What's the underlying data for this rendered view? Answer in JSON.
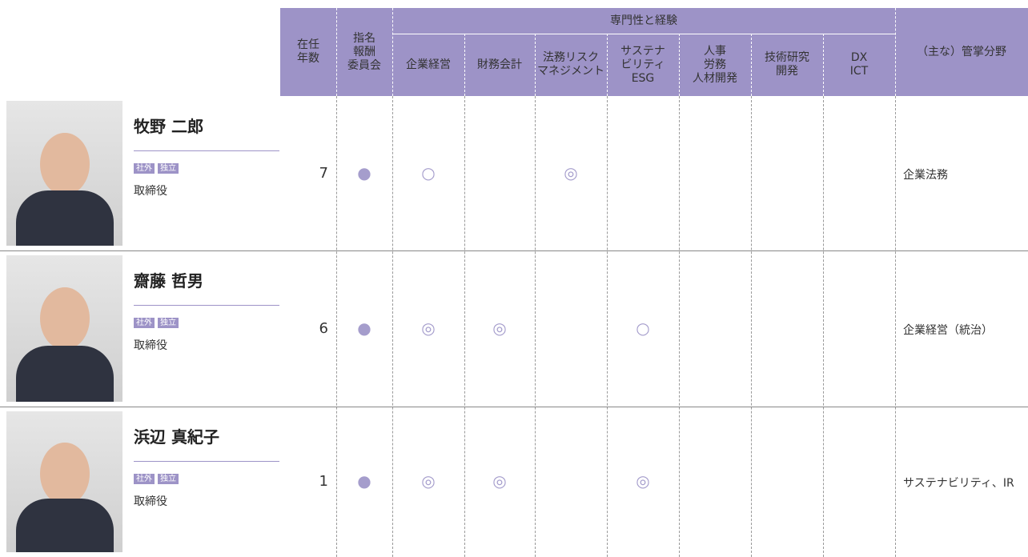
{
  "header": {
    "group": "専門性と経験",
    "columns": [
      [
        "在任",
        "年数"
      ],
      [
        "指名",
        "報酬",
        "委員会"
      ],
      [
        "企業経営"
      ],
      [
        "財務会計"
      ],
      [
        "法務リスク",
        "マネジメント"
      ],
      [
        "サステナ",
        "ビリティ",
        "ESG"
      ],
      [
        "人事",
        "労務",
        "人材開発"
      ],
      [
        "技術研究",
        "開発"
      ],
      [
        "DX",
        "ICT"
      ],
      [
        "（主な）管掌分野"
      ]
    ]
  },
  "rows": [
    {
      "name": "牧野 二郎",
      "tags": [
        "社外",
        "独立"
      ],
      "title": "取締役",
      "tenure": 7,
      "cells": [
        "●",
        "○",
        null,
        "◎",
        null,
        null,
        null,
        null
      ],
      "area": "企業法務"
    },
    {
      "name": "齋藤 哲男",
      "tags": [
        "社外",
        "独立"
      ],
      "title": "取締役",
      "tenure": 6,
      "cells": [
        "●",
        "◎",
        "◎",
        null,
        "○",
        null,
        null,
        null
      ],
      "area": "企業経営（統治）"
    },
    {
      "name": "浜辺 真紀子",
      "tags": [
        "社外",
        "独立"
      ],
      "title": "取締役",
      "tenure": 1,
      "cells": [
        "●",
        "◎",
        "◎",
        null,
        "◎",
        null,
        null,
        null
      ],
      "area": "サステナビリティ、IR"
    }
  ]
}
